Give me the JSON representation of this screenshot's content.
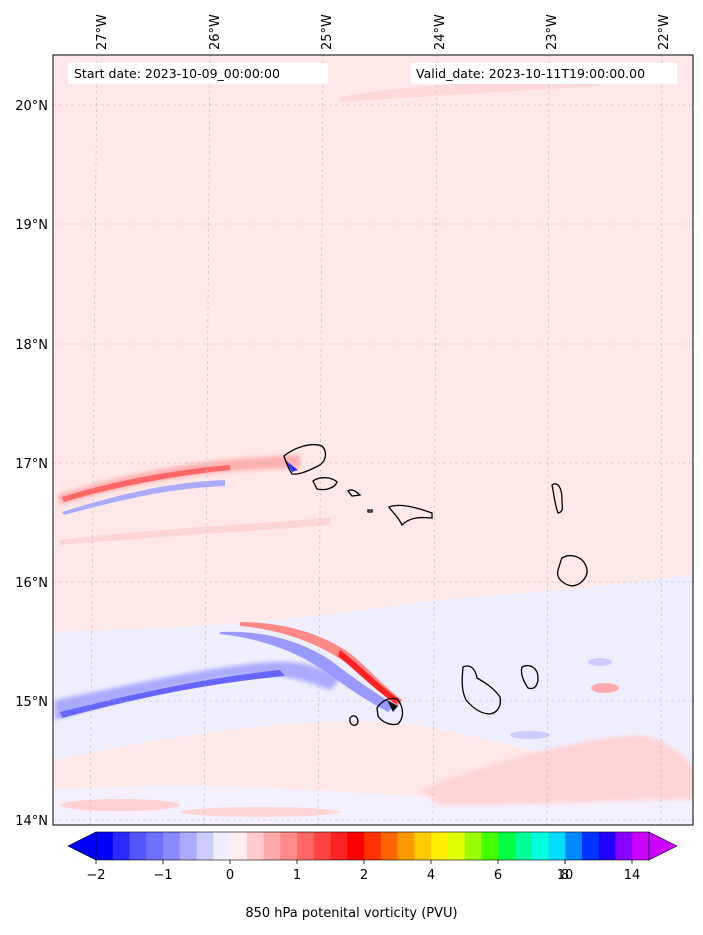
{
  "header": {
    "start_label": "Start date: 2023-10-09_00:00:00",
    "valid_label": "Valid_date: 2023-10-11T19:00:00.00"
  },
  "axes": {
    "lon_labels": [
      "27°W",
      "26°W",
      "25°W",
      "24°W",
      "23°W",
      "22°W"
    ],
    "lat_labels": [
      "20°N",
      "19°N",
      "18°N",
      "17°N",
      "16°N",
      "15°N",
      "14°N"
    ]
  },
  "colorbar": {
    "title": "850 hPa potenital vorticity (PVU)",
    "tick_labels": [
      "−2",
      "−1",
      "0",
      "1",
      "2",
      "4",
      "6",
      "8",
      "10",
      "14"
    ],
    "colors": [
      "#0000ff",
      "#2a2aff",
      "#5555ff",
      "#7070ff",
      "#8888ff",
      "#aaaaff",
      "#ccccff",
      "#eeeeff",
      "#ffeeee",
      "#ffcccc",
      "#ffaaaa",
      "#ff8888",
      "#ff6666",
      "#ff4444",
      "#ff2222",
      "#ff0000",
      "#ff3300",
      "#ff6600",
      "#ff9900",
      "#ffcc00",
      "#ffee00",
      "#ddff00",
      "#99ff00",
      "#44ff00",
      "#00ff44",
      "#00ff99",
      "#00ffdd",
      "#00ddff",
      "#0088ff",
      "#0033ff",
      "#2200ff",
      "#8800ff",
      "#cc00ff"
    ],
    "under_color": "#0000ff",
    "over_color": "#cc00ff"
  },
  "colors": {
    "background_field": "#ffe8e8",
    "pv_negative_light": "#eeeeff",
    "pv_negative": "#8888ff",
    "pv_positive": "#ff6666",
    "pv_strong_positive": "#ff2222",
    "coastline": "#000000"
  },
  "islands": [
    "Santo Antão",
    "São Vicente",
    "Santa Luzia",
    "São Nicolau",
    "Sal",
    "Boa Vista",
    "Maio",
    "Santiago",
    "Fogo",
    "Brava"
  ]
}
